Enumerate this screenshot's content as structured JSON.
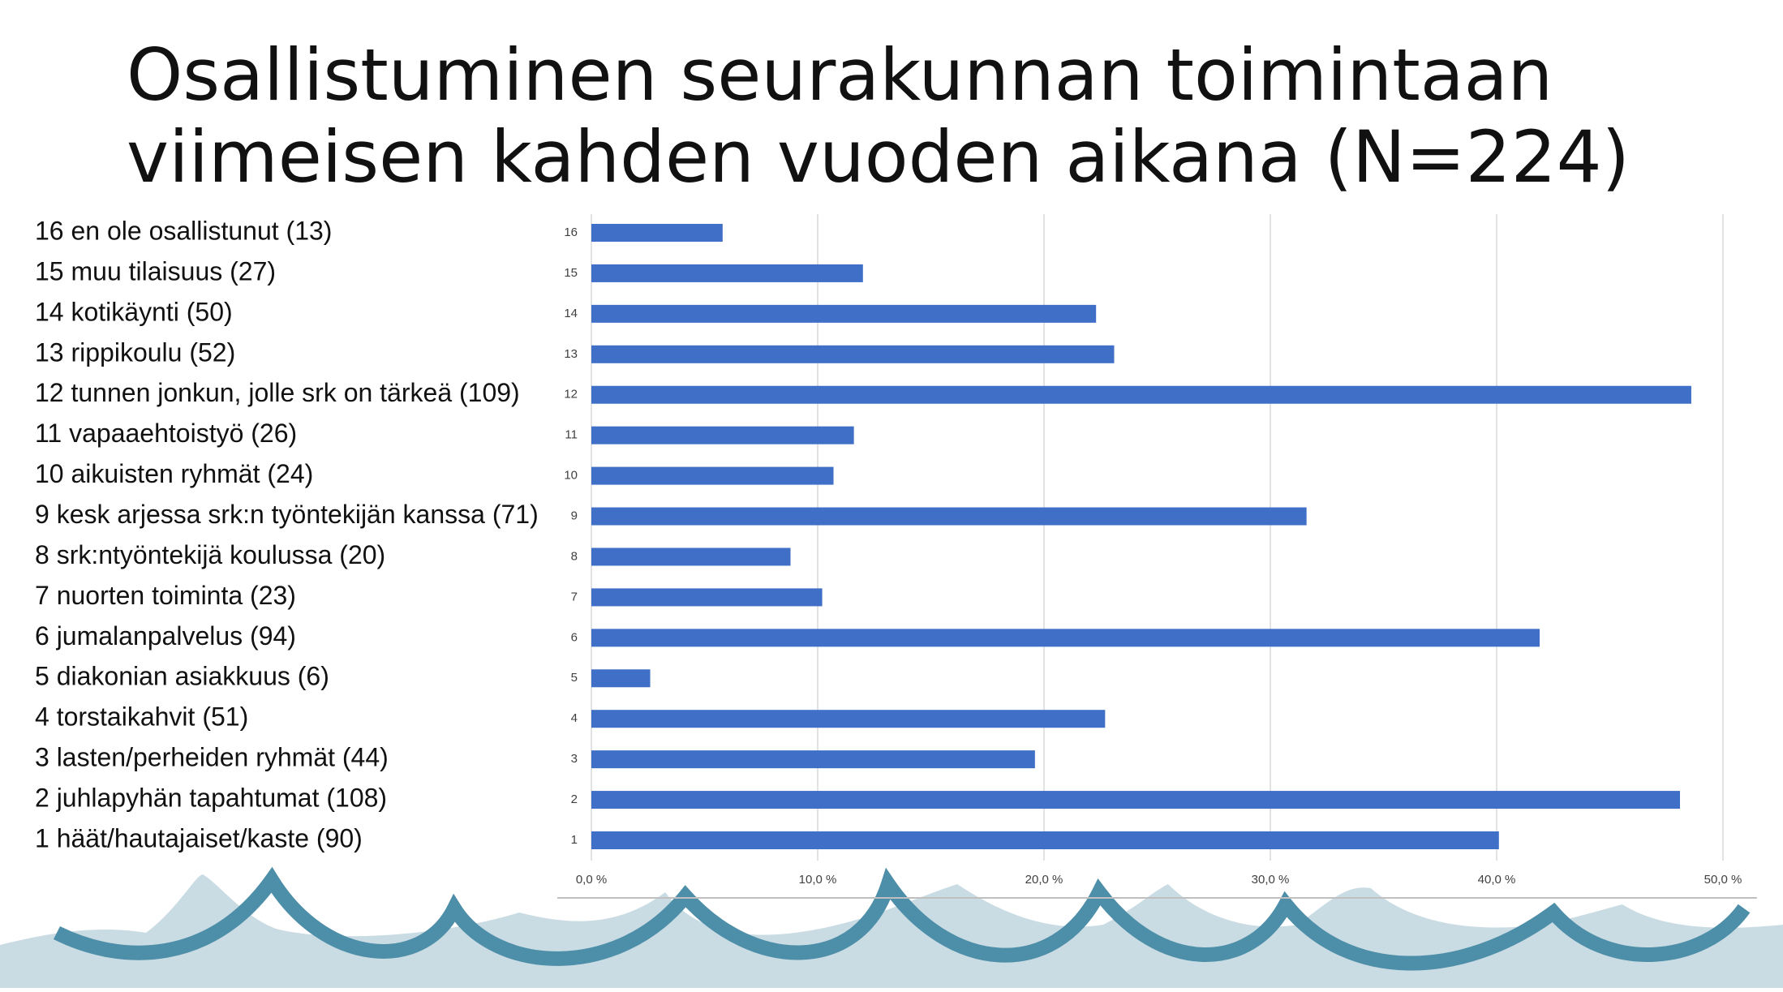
{
  "chart_data": {
    "type": "bar",
    "orientation": "horizontal",
    "title_lines": [
      "Osallistuminen seurakunnan toimintaan",
      "viimeisen kahden vuoden aikana (N=224)"
    ],
    "categories": [
      "1",
      "2",
      "3",
      "4",
      "5",
      "6",
      "7",
      "8",
      "9",
      "10",
      "11",
      "12",
      "13",
      "14",
      "15",
      "16"
    ],
    "item_labels": [
      "1 häät/hautajaiset/kaste (90)",
      "2 juhlapyhän tapahtumat (108)",
      "3 lasten/perheiden ryhmät (44)",
      "4 torstaikahvit (51)",
      "5 diakonian asiakkuus (6)",
      "6 jumalanpalvelus (94)",
      "7 nuorten toiminta (23)",
      "8 srk:ntyöntekijä koulussa (20)",
      "9 kesk arjessa srk:n työntekijän kanssa (71)",
      "10 aikuisten ryhmät (24)",
      "11 vapaaehtoistyö (26)",
      "12 tunnen jonkun, jolle srk on tärkeä (109)",
      "13 rippikoulu (52)",
      "14 kotikäynti (50)",
      "15 muu tilaisuus (27)",
      "16 en ole osallistunut (13)"
    ],
    "values": [
      40.1,
      48.1,
      19.6,
      22.7,
      2.6,
      41.9,
      10.2,
      8.8,
      31.6,
      10.7,
      11.6,
      48.6,
      23.1,
      22.3,
      12.0,
      5.8
    ],
    "color": "#3f6fc6",
    "xlim": [
      0,
      51.5
    ],
    "xticks": [
      {
        "value": 0,
        "label": "0,0 %"
      },
      {
        "value": 10,
        "label": "10,0 %"
      },
      {
        "value": 20,
        "label": "20,0 %"
      },
      {
        "value": 30,
        "label": "30,0 %"
      },
      {
        "value": 40,
        "label": "40,0 %"
      },
      {
        "value": 50,
        "label": "50,0 %"
      }
    ],
    "grid": true
  }
}
